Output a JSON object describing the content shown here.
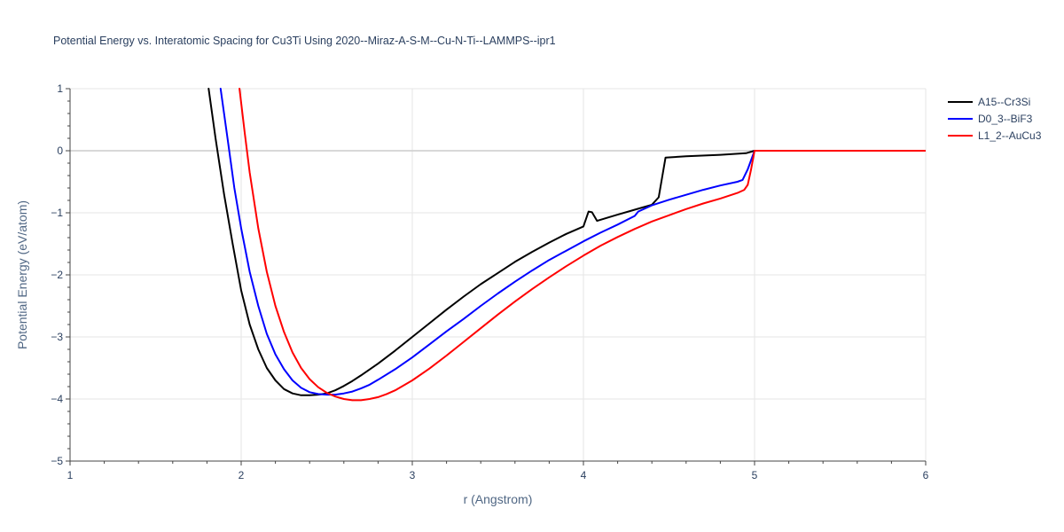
{
  "chart_data": {
    "type": "line",
    "title": "Potential Energy vs. Interatomic Spacing for Cu3Ti Using 2020--Miraz-A-S-M--Cu-N-Ti--LAMMPS--ipr1",
    "xlabel": "r (Angstrom)",
    "ylabel": "Potential Energy (eV/atom)",
    "xlim": [
      1,
      6
    ],
    "ylim": [
      -5,
      1
    ],
    "xticks": [
      1,
      2,
      3,
      4,
      5,
      6
    ],
    "yticks": [
      1,
      0,
      -1,
      -2,
      -3,
      -4,
      -5
    ],
    "xtick_labels": [
      "1",
      "2",
      "3",
      "4",
      "5",
      "6"
    ],
    "ytick_labels": [
      "1",
      "0",
      "−1",
      "−2",
      "−3",
      "−4",
      "−5"
    ],
    "grid": true,
    "legend_position": "top-right",
    "series": [
      {
        "name": "A15--Cr3Si",
        "color": "#000000",
        "points": [
          [
            1.81,
            1.0
          ],
          [
            1.85,
            0.2
          ],
          [
            1.9,
            -0.7
          ],
          [
            1.95,
            -1.5
          ],
          [
            2.0,
            -2.25
          ],
          [
            2.05,
            -2.8
          ],
          [
            2.1,
            -3.2
          ],
          [
            2.15,
            -3.5
          ],
          [
            2.2,
            -3.7
          ],
          [
            2.25,
            -3.84
          ],
          [
            2.3,
            -3.91
          ],
          [
            2.35,
            -3.94
          ],
          [
            2.4,
            -3.94
          ],
          [
            2.45,
            -3.93
          ],
          [
            2.5,
            -3.91
          ],
          [
            2.55,
            -3.86
          ],
          [
            2.6,
            -3.79
          ],
          [
            2.65,
            -3.71
          ],
          [
            2.7,
            -3.62
          ],
          [
            2.8,
            -3.43
          ],
          [
            2.9,
            -3.22
          ],
          [
            3.0,
            -3.0
          ],
          [
            3.1,
            -2.78
          ],
          [
            3.2,
            -2.56
          ],
          [
            3.3,
            -2.35
          ],
          [
            3.4,
            -2.15
          ],
          [
            3.5,
            -1.97
          ],
          [
            3.6,
            -1.79
          ],
          [
            3.7,
            -1.63
          ],
          [
            3.8,
            -1.48
          ],
          [
            3.9,
            -1.34
          ],
          [
            4.0,
            -1.22
          ],
          [
            4.03,
            -0.98
          ],
          [
            4.05,
            -0.99
          ],
          [
            4.08,
            -1.13
          ],
          [
            4.15,
            -1.07
          ],
          [
            4.2,
            -1.03
          ],
          [
            4.3,
            -0.95
          ],
          [
            4.4,
            -0.87
          ],
          [
            4.44,
            -0.75
          ],
          [
            4.48,
            -0.11
          ],
          [
            4.6,
            -0.09
          ],
          [
            4.8,
            -0.065
          ],
          [
            4.95,
            -0.04
          ],
          [
            5.0,
            0.0
          ],
          [
            5.5,
            0.0
          ],
          [
            6.0,
            0.0
          ]
        ]
      },
      {
        "name": "D0_3--BiF3",
        "color": "#0000ff",
        "points": [
          [
            1.88,
            1.0
          ],
          [
            1.92,
            0.2
          ],
          [
            1.96,
            -0.6
          ],
          [
            2.0,
            -1.25
          ],
          [
            2.05,
            -1.95
          ],
          [
            2.1,
            -2.5
          ],
          [
            2.15,
            -2.95
          ],
          [
            2.2,
            -3.28
          ],
          [
            2.25,
            -3.52
          ],
          [
            2.3,
            -3.7
          ],
          [
            2.35,
            -3.82
          ],
          [
            2.4,
            -3.89
          ],
          [
            2.45,
            -3.92
          ],
          [
            2.5,
            -3.93
          ],
          [
            2.55,
            -3.93
          ],
          [
            2.6,
            -3.91
          ],
          [
            2.65,
            -3.88
          ],
          [
            2.7,
            -3.83
          ],
          [
            2.75,
            -3.77
          ],
          [
            2.8,
            -3.69
          ],
          [
            2.9,
            -3.52
          ],
          [
            3.0,
            -3.33
          ],
          [
            3.1,
            -3.12
          ],
          [
            3.2,
            -2.91
          ],
          [
            3.3,
            -2.71
          ],
          [
            3.4,
            -2.5
          ],
          [
            3.5,
            -2.3
          ],
          [
            3.6,
            -2.11
          ],
          [
            3.7,
            -1.93
          ],
          [
            3.8,
            -1.76
          ],
          [
            3.9,
            -1.61
          ],
          [
            4.0,
            -1.46
          ],
          [
            4.1,
            -1.32
          ],
          [
            4.2,
            -1.19
          ],
          [
            4.3,
            -1.05
          ],
          [
            4.32,
            -0.98
          ],
          [
            4.4,
            -0.88
          ],
          [
            4.5,
            -0.79
          ],
          [
            4.6,
            -0.71
          ],
          [
            4.7,
            -0.63
          ],
          [
            4.8,
            -0.56
          ],
          [
            4.9,
            -0.5
          ],
          [
            4.93,
            -0.47
          ],
          [
            4.96,
            -0.3
          ],
          [
            5.0,
            0.0
          ],
          [
            5.5,
            0.0
          ],
          [
            6.0,
            0.0
          ]
        ]
      },
      {
        "name": "L1_2--AuCu3",
        "color": "#ff0000",
        "points": [
          [
            1.99,
            1.0
          ],
          [
            2.02,
            0.3
          ],
          [
            2.05,
            -0.35
          ],
          [
            2.1,
            -1.25
          ],
          [
            2.15,
            -1.95
          ],
          [
            2.2,
            -2.5
          ],
          [
            2.25,
            -2.92
          ],
          [
            2.3,
            -3.25
          ],
          [
            2.35,
            -3.5
          ],
          [
            2.4,
            -3.68
          ],
          [
            2.45,
            -3.81
          ],
          [
            2.5,
            -3.9
          ],
          [
            2.55,
            -3.96
          ],
          [
            2.6,
            -4.0
          ],
          [
            2.65,
            -4.02
          ],
          [
            2.7,
            -4.02
          ],
          [
            2.75,
            -4.0
          ],
          [
            2.8,
            -3.97
          ],
          [
            2.85,
            -3.92
          ],
          [
            2.9,
            -3.86
          ],
          [
            3.0,
            -3.7
          ],
          [
            3.1,
            -3.51
          ],
          [
            3.2,
            -3.3
          ],
          [
            3.3,
            -3.08
          ],
          [
            3.4,
            -2.86
          ],
          [
            3.5,
            -2.64
          ],
          [
            3.6,
            -2.43
          ],
          [
            3.7,
            -2.23
          ],
          [
            3.8,
            -2.04
          ],
          [
            3.9,
            -1.86
          ],
          [
            4.0,
            -1.69
          ],
          [
            4.1,
            -1.53
          ],
          [
            4.2,
            -1.39
          ],
          [
            4.3,
            -1.26
          ],
          [
            4.4,
            -1.14
          ],
          [
            4.5,
            -1.04
          ],
          [
            4.6,
            -0.94
          ],
          [
            4.7,
            -0.85
          ],
          [
            4.8,
            -0.77
          ],
          [
            4.9,
            -0.68
          ],
          [
            4.94,
            -0.63
          ],
          [
            4.96,
            -0.55
          ],
          [
            4.98,
            -0.3
          ],
          [
            5.0,
            0.0
          ],
          [
            5.5,
            0.0
          ],
          [
            6.0,
            0.0
          ]
        ]
      }
    ]
  }
}
